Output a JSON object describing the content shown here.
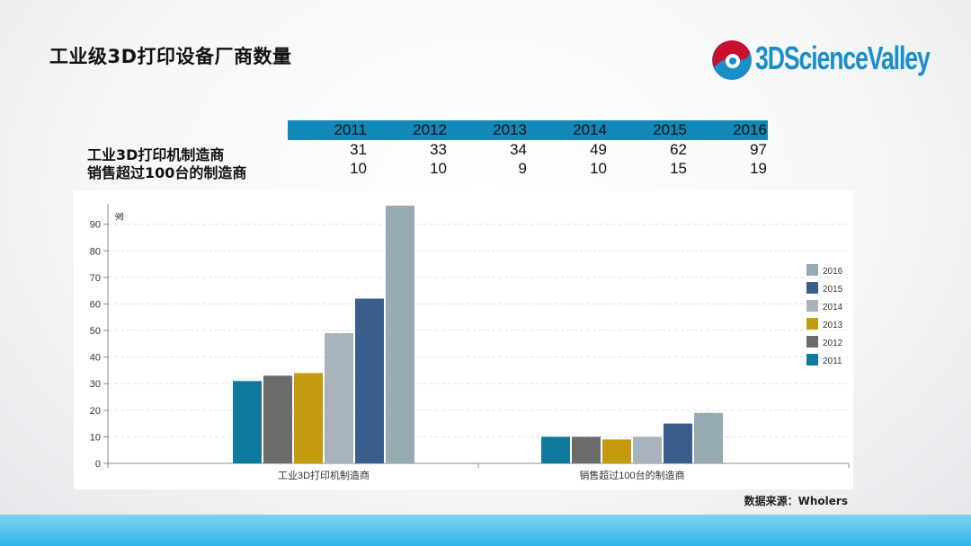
{
  "slide": {
    "title": "工业级3D打印设备厂商数量",
    "logo_text": "3DScienceValley",
    "source": "数据来源：Wholers"
  },
  "table": {
    "years": [
      "2011",
      "2012",
      "2013",
      "2014",
      "2015",
      "2016"
    ],
    "rows": [
      {
        "label": "工业3D打印机制造商",
        "values": [
          "31",
          "33",
          "34",
          "49",
          "62",
          "97"
        ]
      },
      {
        "label": "销售超过100台的制造商",
        "values": [
          "10",
          "10",
          "9",
          "10",
          "15",
          "19"
        ]
      }
    ]
  },
  "colors": {
    "2011": "#0f7b9c",
    "2012": "#6b6b6b",
    "2013": "#c49a0f",
    "2014": "#a8b3bb",
    "2015": "#3a5e8c",
    "2016": "#96abb2",
    "header": "#1188b8",
    "bottom_bar": "#2fb7e8"
  },
  "chart_data": {
    "type": "bar",
    "categories": [
      "工业3D打印机制造商",
      "销售超过100台的制造商"
    ],
    "series": [
      {
        "name": "2011",
        "values": [
          31,
          10
        ]
      },
      {
        "name": "2012",
        "values": [
          33,
          10
        ]
      },
      {
        "name": "2013",
        "values": [
          34,
          9
        ]
      },
      {
        "name": "2014",
        "values": [
          49,
          10
        ]
      },
      {
        "name": "2015",
        "values": [
          62,
          15
        ]
      },
      {
        "name": "2016",
        "values": [
          97,
          19
        ]
      }
    ],
    "ylabel": "家",
    "ylim": [
      0,
      97
    ],
    "yticks": [
      "0",
      "10",
      "20",
      "30",
      "40",
      "50",
      "60",
      "70",
      "80",
      "90"
    ],
    "grid": true,
    "legend_position": "right",
    "legend_order": [
      "2016",
      "2015",
      "2014",
      "2013",
      "2012",
      "2011"
    ]
  }
}
